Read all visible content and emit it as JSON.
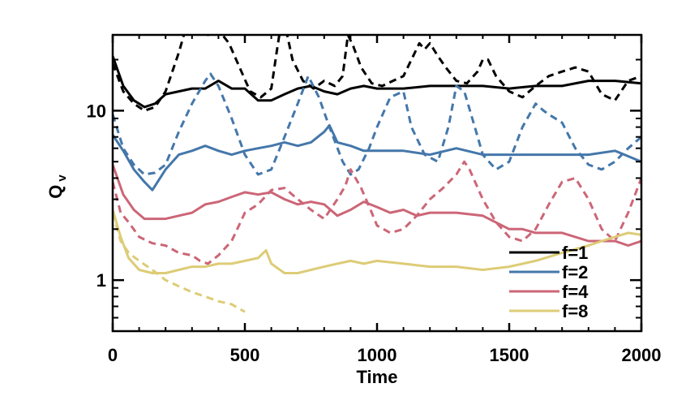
{
  "chart_data": {
    "type": "line",
    "title": "",
    "xlabel": "Time",
    "ylabel": "Q",
    "ylabel_sub": "v",
    "xlim": [
      0,
      2000
    ],
    "ylim": [
      0.5,
      28
    ],
    "yscale": "log",
    "grid": false,
    "legend_position": "bottom-right",
    "x_ticks": [
      0,
      500,
      1000,
      1500,
      2000
    ],
    "x_tick_labels": [
      "0",
      "500",
      "1000",
      "1500",
      "2000"
    ],
    "y_ticks": [
      1,
      10
    ],
    "y_tick_labels": [
      "1",
      "10"
    ],
    "legend": [
      "f=1",
      "f=2",
      "f=4",
      "f=8"
    ],
    "series": [
      {
        "name": "f=1",
        "style": "solid",
        "color": "#000000",
        "x": [
          0,
          40,
          80,
          120,
          160,
          200,
          250,
          300,
          350,
          400,
          450,
          500,
          550,
          600,
          650,
          700,
          750,
          800,
          850,
          900,
          950,
          1000,
          1100,
          1200,
          1300,
          1400,
          1500,
          1600,
          1700,
          1800,
          1900,
          2000
        ],
        "y": [
          21,
          14,
          11.5,
          10.5,
          11,
          12.5,
          13,
          13.5,
          13.5,
          15,
          13.5,
          13.5,
          11.5,
          11.5,
          12.5,
          13.5,
          14,
          13,
          12.5,
          13.5,
          14,
          13.5,
          13.5,
          14,
          14,
          14,
          13.5,
          14,
          14,
          15,
          15,
          14.5
        ]
      },
      {
        "name": "f=1",
        "style": "dashed",
        "color": "#000000",
        "x": [
          0,
          40,
          80,
          120,
          160,
          200,
          250,
          280,
          300,
          330,
          360,
          400,
          440,
          480,
          520,
          560,
          600,
          620,
          640,
          660,
          680,
          720,
          760,
          800,
          840,
          870,
          890,
          910,
          940,
          980,
          1020,
          1060,
          1100,
          1130,
          1160,
          1180,
          1200,
          1230,
          1260,
          1300,
          1340,
          1380,
          1400,
          1420,
          1450,
          1500,
          1550,
          1600,
          1650,
          1700,
          1750,
          1800,
          1850,
          1900,
          1950,
          2000
        ],
        "y": [
          19,
          13,
          11,
          10,
          10.5,
          13,
          22,
          32,
          34,
          30,
          28,
          30,
          25,
          18,
          13,
          12,
          13.5,
          22,
          35,
          28,
          20,
          15,
          13.5,
          15,
          14,
          16,
          28,
          24,
          18,
          14.5,
          14,
          15,
          16,
          20,
          25,
          23,
          25,
          21,
          18,
          15,
          14.5,
          17,
          20,
          20,
          16,
          13,
          12,
          14,
          16,
          17,
          18,
          17,
          12.5,
          11.5,
          15,
          16
        ]
      },
      {
        "name": "f=2",
        "style": "solid",
        "color": "#4477AA",
        "x": [
          0,
          40,
          80,
          120,
          150,
          200,
          250,
          300,
          350,
          400,
          450,
          500,
          550,
          600,
          650,
          700,
          750,
          800,
          820,
          850,
          900,
          950,
          1000,
          1100,
          1200,
          1300,
          1400,
          1500,
          1600,
          1700,
          1800,
          1900,
          2000
        ],
        "y": [
          7.2,
          5.8,
          4.5,
          3.8,
          3.4,
          4.5,
          5.5,
          5.8,
          6.2,
          5.8,
          5.5,
          5.8,
          6,
          6.2,
          6.5,
          6.2,
          6.5,
          7.5,
          8.2,
          6.5,
          6.2,
          5.8,
          5.8,
          5.8,
          5.5,
          6,
          5.5,
          5.5,
          5.5,
          5.5,
          5.5,
          5.8,
          5
        ]
      },
      {
        "name": "f=2",
        "style": "dashed",
        "color": "#4477AA",
        "x": [
          0,
          40,
          80,
          120,
          160,
          200,
          250,
          300,
          350,
          370,
          400,
          450,
          500,
          550,
          600,
          650,
          700,
          740,
          780,
          820,
          870,
          900,
          930,
          970,
          1000,
          1050,
          1100,
          1130,
          1180,
          1230,
          1270,
          1300,
          1330,
          1370,
          1400,
          1450,
          1500,
          1550,
          1600,
          1630,
          1650,
          1700,
          1750,
          1800,
          1850,
          1900,
          1950,
          2000
        ],
        "y": [
          9.5,
          6,
          4.8,
          4.2,
          4.3,
          4.8,
          7.5,
          11,
          15,
          16.5,
          14,
          9,
          5.5,
          4.2,
          4.5,
          7,
          11,
          16,
          12,
          8,
          5,
          4.2,
          4.5,
          6,
          8,
          12,
          13,
          8,
          5.5,
          5,
          8,
          14,
          13,
          8,
          5.5,
          4.5,
          5,
          8,
          11,
          10,
          9.5,
          8.5,
          6,
          4.8,
          4.5,
          5,
          6,
          7
        ]
      },
      {
        "name": "f=4",
        "style": "solid",
        "color": "#CC6677",
        "x": [
          0,
          40,
          80,
          120,
          160,
          200,
          250,
          300,
          350,
          400,
          450,
          500,
          550,
          600,
          650,
          700,
          750,
          800,
          850,
          900,
          950,
          1000,
          1050,
          1100,
          1150,
          1200,
          1300,
          1400,
          1500,
          1550,
          1600,
          1700,
          1800,
          1850,
          1900,
          1950,
          2000
        ],
        "y": [
          4.8,
          3.2,
          2.6,
          2.3,
          2.3,
          2.3,
          2.4,
          2.5,
          2.8,
          2.9,
          3.1,
          3.3,
          3.2,
          3.3,
          3.0,
          2.8,
          2.9,
          2.8,
          2.4,
          2.6,
          2.9,
          2.7,
          2.5,
          2.6,
          2.4,
          2.5,
          2.5,
          2.4,
          2.0,
          2.0,
          1.9,
          1.9,
          1.7,
          1.7,
          1.7,
          1.6,
          1.7
        ]
      },
      {
        "name": "f=4",
        "style": "dashed",
        "color": "#CC6677",
        "x": [
          0,
          30,
          60,
          100,
          150,
          200,
          250,
          300,
          330,
          360,
          400,
          450,
          500,
          550,
          600,
          650,
          700,
          750,
          800,
          850,
          880,
          900,
          940,
          980,
          1000,
          1050,
          1100,
          1150,
          1200,
          1250,
          1300,
          1330,
          1350,
          1400,
          1450,
          1500,
          1550,
          1600,
          1650,
          1700,
          1750,
          1800,
          1850,
          1900,
          1950,
          2000
        ],
        "y": [
          3.8,
          2.5,
          2.2,
          1.8,
          1.65,
          1.6,
          1.45,
          1.4,
          1.3,
          1.25,
          1.4,
          1.7,
          2.5,
          2.8,
          3.4,
          3.5,
          3.0,
          2.6,
          2.3,
          3.0,
          3.6,
          4.5,
          3.5,
          2.5,
          2.1,
          1.9,
          2.0,
          2.4,
          3.0,
          3.5,
          4.2,
          5.0,
          4.5,
          3.0,
          2.2,
          1.8,
          1.7,
          2.0,
          2.8,
          3.8,
          4.0,
          3.0,
          2.0,
          1.7,
          2.5,
          4.0
        ]
      },
      {
        "name": "f=8",
        "style": "solid",
        "color": "#DDCC77",
        "x": [
          0,
          30,
          60,
          100,
          150,
          200,
          250,
          300,
          350,
          400,
          450,
          500,
          550,
          580,
          600,
          650,
          700,
          750,
          800,
          850,
          900,
          950,
          1000,
          1100,
          1200,
          1300,
          1400,
          1500,
          1600,
          1700,
          1800,
          1850,
          1900,
          1950,
          2000
        ],
        "y": [
          2.6,
          1.8,
          1.35,
          1.15,
          1.1,
          1.1,
          1.15,
          1.2,
          1.2,
          1.25,
          1.25,
          1.3,
          1.35,
          1.5,
          1.25,
          1.1,
          1.1,
          1.15,
          1.2,
          1.25,
          1.3,
          1.25,
          1.3,
          1.25,
          1.2,
          1.2,
          1.15,
          1.2,
          1.3,
          1.45,
          1.6,
          1.7,
          1.8,
          1.9,
          1.85
        ]
      },
      {
        "name": "f=8",
        "style": "dashed",
        "color": "#DDCC77",
        "x": [
          0,
          30,
          60,
          100,
          150,
          200,
          250,
          300,
          350,
          400,
          450,
          500
        ],
        "y": [
          2.5,
          1.7,
          1.45,
          1.3,
          1.15,
          1.0,
          0.92,
          0.85,
          0.8,
          0.75,
          0.72,
          0.65
        ]
      }
    ]
  }
}
